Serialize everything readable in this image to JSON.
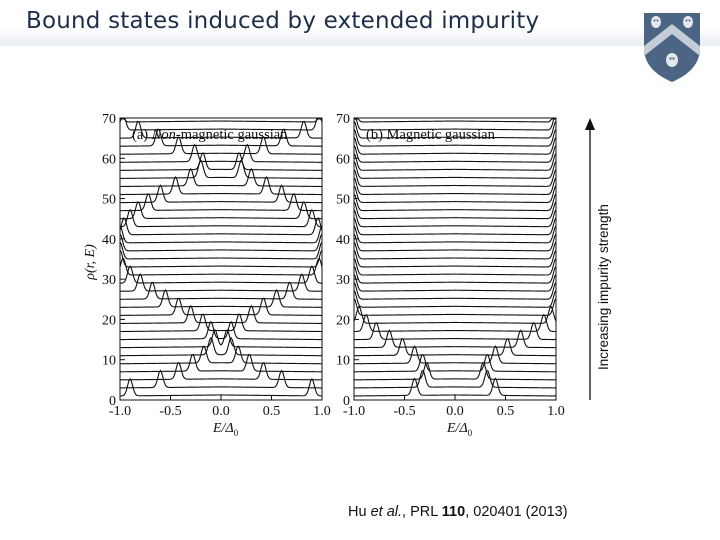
{
  "slide": {
    "title": "Bound states induced by extended impurity"
  },
  "logo": {
    "icon": "rice-university-shield-icon",
    "colors": {
      "shield": "#4c6584",
      "chevron": "#c3ccd7",
      "owl": "#e4e8ee"
    }
  },
  "annotation": {
    "arrow_label": "Increasing impurity strength"
  },
  "citation": {
    "authors": "Hu",
    "etal": "et al.",
    "journal": "PRL",
    "volume": "110",
    "rest": "020401 (2013)"
  },
  "chart_data": [
    {
      "type": "line",
      "panel": "(a)",
      "title_prefix": "(a)",
      "title_italic": "Non",
      "title_rest": "-magnetic gaussian",
      "ylabel_mark": "ρ(r, E)",
      "xlabel": "E/Δ",
      "xlabel_sub": "0",
      "xlim": [
        -1.0,
        1.0
      ],
      "ylim": [
        0,
        70
      ],
      "xticks": [
        "-1.0",
        "-0.5",
        "0.0",
        "0.5",
        "1.0"
      ],
      "yticks": [
        "0",
        "10",
        "20",
        "30",
        "40",
        "50",
        "60",
        "70"
      ],
      "curves": 35,
      "offset_per_curve": 2,
      "peak_positions": [
        0.9,
        0.6,
        0.42,
        0.28,
        0.17,
        0.1,
        0.06,
        0.1,
        0.18,
        0.3,
        0.42,
        0.55,
        0.68,
        0.8,
        0.9,
        0.97,
        1.0,
        1.0,
        1.0,
        1.0,
        0.96,
        0.9,
        0.82,
        0.72,
        0.6,
        0.45,
        0.3,
        0.2,
        0.18,
        0.26,
        0.42,
        0.62,
        0.82,
        0.97,
        1.0
      ]
    },
    {
      "type": "line",
      "panel": "(b)",
      "title_prefix": "(b)",
      "title_rest": "Magnetic gaussian",
      "xlabel": "E/Δ",
      "xlabel_sub": "0",
      "xlim": [
        -1.0,
        1.0
      ],
      "ylim": [
        0,
        70
      ],
      "xticks": [
        "-1.0",
        "-0.5",
        "0.0",
        "0.5",
        "1.0"
      ],
      "yticks": [
        "0",
        "10",
        "20",
        "30",
        "40",
        "50",
        "60",
        "70"
      ],
      "curves": 35,
      "offset_per_curve": 2,
      "peak_positions": [
        0.4,
        0.32,
        0.28,
        0.32,
        0.4,
        0.52,
        0.65,
        0.78,
        0.88,
        0.95,
        1.0,
        1.0,
        1.0,
        1.0,
        1.0,
        1.0,
        1.0,
        1.0,
        1.0,
        1.0,
        1.0,
        1.0,
        1.0,
        1.0,
        1.0,
        1.0,
        1.0,
        1.0,
        1.0,
        1.0,
        1.0,
        1.0,
        1.0,
        1.0,
        1.0
      ]
    }
  ]
}
